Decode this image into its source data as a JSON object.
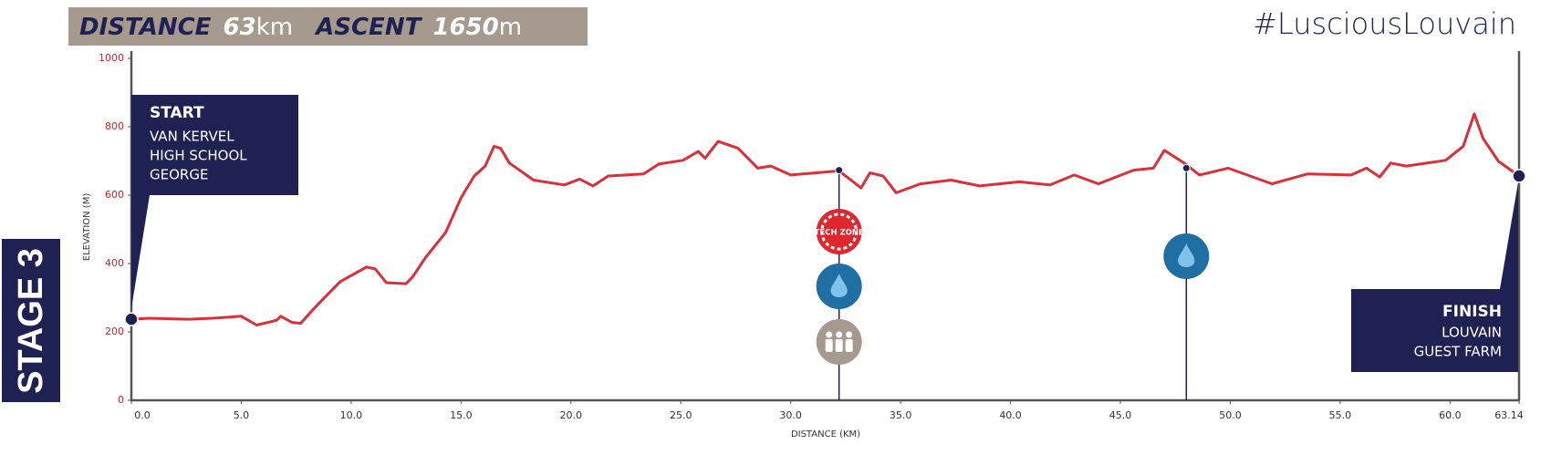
{
  "chart_data": {
    "type": "line",
    "header": {
      "distance_label": "DISTANCE",
      "distance": "63",
      "distance_unit": "km",
      "ascent_label": "ASCENT",
      "ascent": "1650",
      "ascent_unit": "m"
    },
    "hashtag": "#LusciousLouvain",
    "stage": "STAGE 3",
    "start": {
      "title": "START",
      "lines": [
        "VAN KERVEL",
        "HIGH SCHOOL",
        "GEORGE"
      ]
    },
    "finish": {
      "title": "FINISH",
      "lines": [
        "LOUVAIN",
        "GUEST FARM"
      ]
    },
    "tech_zone_label": "TECH ZONE",
    "xlabel": "DISTANCE (KM)",
    "ylabel": "ELEVATION (M)",
    "color": "#d9303a",
    "x": [
      0,
      0.8,
      2.6,
      3.7,
      5.0,
      5.7,
      6.6,
      6.8,
      7.3,
      7.7,
      8.4,
      9.5,
      10.7,
      11.1,
      11.6,
      12.5,
      12.8,
      13.4,
      14.3,
      15.0,
      15.6,
      16.1,
      16.5,
      16.8,
      17.2,
      18.3,
      19.7,
      20.4,
      21.0,
      21.7,
      23.3,
      24.0,
      25.1,
      25.8,
      26.1,
      26.7,
      27.6,
      28.5,
      29.1,
      30.0,
      32.2,
      33.2,
      33.6,
      34.2,
      34.8,
      35.9,
      37.3,
      38.6,
      40.4,
      41.8,
      42.9,
      44.0,
      45.6,
      46.5,
      47.0,
      47.9,
      48.6,
      49.9,
      51.9,
      53.5,
      55.5,
      56.2,
      56.8,
      57.3,
      58.0,
      59.8,
      60.6,
      61.1,
      61.5,
      62.2,
      63.14
    ],
    "values": [
      237,
      240,
      237,
      240,
      246,
      220,
      234,
      246,
      228,
      225,
      275,
      347,
      390,
      384,
      344,
      341,
      361,
      419,
      491,
      592,
      656,
      685,
      743,
      737,
      694,
      644,
      630,
      647,
      627,
      656,
      662,
      691,
      702,
      728,
      708,
      757,
      737,
      679,
      685,
      659,
      671,
      621,
      665,
      656,
      607,
      633,
      644,
      627,
      639,
      630,
      659,
      633,
      673,
      679,
      731,
      694,
      659,
      679,
      633,
      662,
      659,
      679,
      653,
      694,
      685,
      702,
      743,
      838,
      766,
      699,
      656
    ],
    "stations": [
      {
        "x": 32.2,
        "value": 673
      },
      {
        "x": 48.0,
        "value": 679
      }
    ],
    "xlim": [
      0,
      63.14
    ],
    "ylim": [
      0,
      1000
    ],
    "xticks": [
      {
        "value": 0,
        "label": "0.0"
      },
      {
        "value": 5,
        "label": "5.0"
      },
      {
        "value": 10,
        "label": "10.0"
      },
      {
        "value": 15,
        "label": "15.0"
      },
      {
        "value": 20,
        "label": "20.0"
      },
      {
        "value": 25,
        "label": "25.0"
      },
      {
        "value": 30,
        "label": "30.0"
      },
      {
        "value": 35,
        "label": "35.0"
      },
      {
        "value": 40,
        "label": "40.0"
      },
      {
        "value": 45,
        "label": "45.0"
      },
      {
        "value": 50,
        "label": "50.0"
      },
      {
        "value": 55,
        "label": "55.0"
      },
      {
        "value": 60,
        "label": "60.0"
      },
      63.14
    ],
    "yticks": [
      0,
      200,
      400,
      600,
      800,
      1000
    ]
  }
}
